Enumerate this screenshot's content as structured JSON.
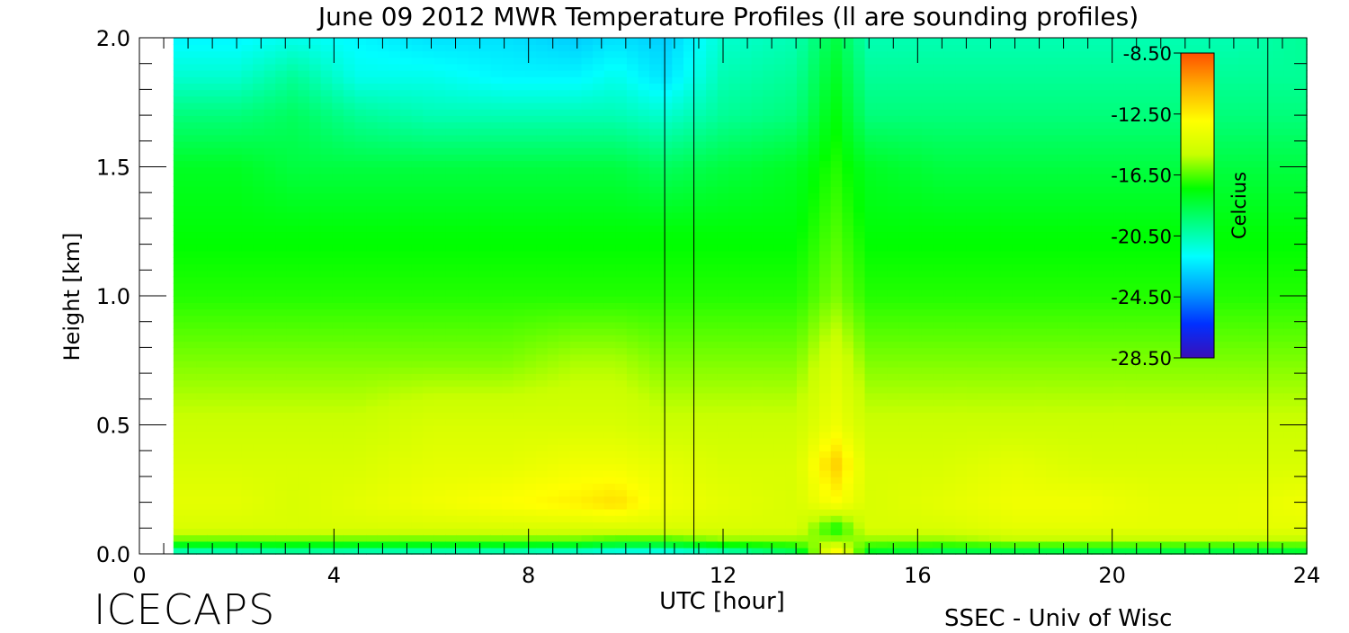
{
  "chart_data": {
    "type": "heatmap",
    "title": "June 09 2012 MWR Temperature Profiles (ll are sounding profiles)",
    "xlabel": "UTC [hour]",
    "ylabel": "Height [km]",
    "xlim": [
      0,
      24
    ],
    "ylim": [
      0,
      2.0
    ],
    "x_ticks": [
      0,
      4,
      8,
      12,
      16,
      20,
      24
    ],
    "x_tick_labels": [
      "0",
      "4",
      "8",
      "12",
      "16",
      "20",
      "24"
    ],
    "y_ticks": [
      0,
      0.5,
      1.0,
      1.5,
      2.0
    ],
    "y_tick_labels": [
      "0.0",
      "0.5",
      "1.0",
      "1.5",
      "2.0"
    ],
    "data_time_range": [
      0.7,
      24
    ],
    "heights_km": [
      0.0,
      0.05,
      0.1,
      0.2,
      0.35,
      0.5,
      0.75,
      1.0,
      1.25,
      1.5,
      1.7,
      1.85,
      2.0
    ],
    "times_hr": [
      0.7,
      2,
      3.2,
      4.5,
      6,
      7.5,
      9,
      9.8,
      10.8,
      12,
      13.5,
      14.3,
      15,
      16.5,
      18,
      19.5,
      21,
      22.5,
      24
    ],
    "temperature_celsius": [
      [
        -21.5,
        -21.5,
        -21.0,
        -21.5,
        -21.5,
        -21.5,
        -22.0,
        -22.5,
        -22.5,
        -21.5,
        -19.5,
        -12.0,
        -18.5,
        -19.5,
        -19.5,
        -19.5,
        -19.5,
        -19.5,
        -19.0
      ],
      [
        -16.5,
        -16.5,
        -16.5,
        -16.5,
        -16.5,
        -16.5,
        -16.5,
        -17.0,
        -17.0,
        -16.0,
        -16.0,
        -15.5,
        -16.0,
        -16.0,
        -15.5,
        -15.5,
        -15.5,
        -15.5,
        -15.5
      ],
      [
        -14.5,
        -14.5,
        -14.5,
        -14.5,
        -14.5,
        -14.5,
        -14.5,
        -14.5,
        -14.5,
        -14.5,
        -14.5,
        -17.5,
        -14.5,
        -14.5,
        -14.0,
        -14.0,
        -14.0,
        -14.0,
        -14.0
      ],
      [
        -14.0,
        -14.0,
        -14.5,
        -14.0,
        -13.5,
        -13.0,
        -12.5,
        -12.0,
        -13.5,
        -14.0,
        -14.5,
        -13.0,
        -14.5,
        -14.0,
        -13.5,
        -13.5,
        -14.0,
        -14.0,
        -13.5
      ],
      [
        -14.5,
        -14.5,
        -14.5,
        -14.5,
        -14.0,
        -14.0,
        -13.5,
        -13.5,
        -14.0,
        -14.5,
        -14.5,
        -11.5,
        -14.5,
        -14.5,
        -14.0,
        -14.5,
        -14.5,
        -14.5,
        -14.5
      ],
      [
        -15.0,
        -15.0,
        -15.0,
        -15.0,
        -14.5,
        -14.5,
        -14.5,
        -14.5,
        -15.0,
        -15.0,
        -15.0,
        -13.5,
        -15.0,
        -15.0,
        -15.0,
        -15.0,
        -15.0,
        -15.0,
        -15.0
      ],
      [
        -16.0,
        -16.0,
        -16.0,
        -16.0,
        -16.0,
        -16.0,
        -15.5,
        -15.5,
        -16.0,
        -16.0,
        -16.0,
        -14.5,
        -16.0,
        -16.0,
        -16.0,
        -16.0,
        -16.0,
        -16.0,
        -16.0
      ],
      [
        -17.0,
        -17.0,
        -17.0,
        -17.0,
        -17.0,
        -17.0,
        -17.0,
        -17.0,
        -17.0,
        -17.0,
        -17.0,
        -16.0,
        -17.0,
        -17.0,
        -17.0,
        -17.0,
        -17.0,
        -17.0,
        -17.0
      ],
      [
        -17.5,
        -17.5,
        -17.5,
        -17.5,
        -17.5,
        -17.5,
        -17.5,
        -17.5,
        -17.5,
        -17.5,
        -17.5,
        -16.5,
        -17.5,
        -17.5,
        -17.5,
        -17.5,
        -17.5,
        -17.5,
        -17.5
      ],
      [
        -18.0,
        -18.0,
        -18.5,
        -18.5,
        -18.5,
        -18.5,
        -18.5,
        -18.5,
        -19.0,
        -18.5,
        -18.0,
        -17.0,
        -18.0,
        -18.5,
        -18.5,
        -18.5,
        -18.5,
        -18.5,
        -18.5
      ],
      [
        -19.5,
        -19.5,
        -19.0,
        -20.0,
        -20.5,
        -20.5,
        -20.5,
        -20.5,
        -21.0,
        -20.0,
        -19.5,
        -17.5,
        -19.5,
        -19.5,
        -19.5,
        -19.5,
        -19.5,
        -19.5,
        -19.5
      ],
      [
        -21.0,
        -21.0,
        -20.0,
        -21.5,
        -21.5,
        -22.0,
        -22.0,
        -21.5,
        -22.5,
        -20.5,
        -20.0,
        -18.0,
        -20.0,
        -20.0,
        -20.0,
        -20.0,
        -20.0,
        -20.0,
        -20.0
      ],
      [
        -22.0,
        -22.0,
        -21.5,
        -22.0,
        -22.5,
        -22.5,
        -23.0,
        -22.5,
        -23.0,
        -21.0,
        -20.5,
        -18.5,
        -20.5,
        -20.5,
        -20.5,
        -20.5,
        -20.5,
        -20.5,
        -20.0
      ]
    ],
    "sounding_times_hr": [
      10.8,
      11.4,
      23.2
    ],
    "colorbar": {
      "label": "Celcius",
      "min": -28.5,
      "max": -8.5,
      "tick_values": [
        -8.5,
        -12.5,
        -16.5,
        -20.5,
        -24.5,
        -28.5
      ],
      "tick_labels": [
        "-8.50",
        "-12.50",
        "-16.50",
        "-20.50",
        "-24.50",
        "-28.50"
      ],
      "colors": [
        "#3a0fb8",
        "#0030ff",
        "#00a0ff",
        "#00ffff",
        "#00ff80",
        "#00ff00",
        "#c8ff00",
        "#ffff00",
        "#ffb000",
        "#ff5000"
      ]
    }
  },
  "footer": {
    "left": "ICECAPS",
    "right": "SSEC - Univ of Wisc"
  }
}
